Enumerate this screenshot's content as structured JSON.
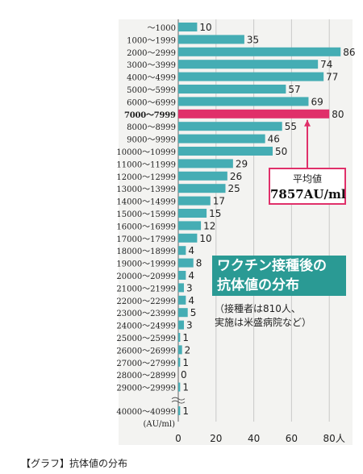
{
  "chart_data": {
    "type": "bar",
    "orientation": "horizontal",
    "title": "ワクチン接種後の抗体値の分布",
    "note": "（接種者は810人、実施は米盛病院など）",
    "categories": [
      "～1000",
      "1000～1999",
      "2000～2999",
      "3000～3999",
      "4000～4999",
      "5000～5999",
      "6000～6999",
      "7000～7999",
      "8000～8999",
      "9000～9999",
      "10000～10999",
      "11000～11999",
      "12000～12999",
      "13000～13999",
      "14000～14999",
      "15000～15999",
      "16000～16999",
      "17000～17999",
      "18000～18999",
      "19000～19999",
      "20000～20999",
      "21000～21999",
      "22000～22999",
      "23000～23999",
      "24000～24999",
      "25000～25999",
      "26000～26999",
      "27000～27999",
      "28000～28999",
      "29000～29999",
      "40000～40999"
    ],
    "values": [
      10,
      35,
      86,
      74,
      77,
      57,
      69,
      80,
      55,
      46,
      50,
      29,
      26,
      25,
      17,
      15,
      12,
      10,
      4,
      8,
      4,
      3,
      4,
      5,
      3,
      1,
      2,
      1,
      0,
      1,
      1
    ],
    "highlight_index": 7,
    "xticks": [
      "0",
      "20",
      "40",
      "60",
      "80人"
    ],
    "xlim": [
      0,
      90
    ],
    "ylabel": "(AU/ml)",
    "grid": true,
    "colors": {
      "bar": "#45adb4",
      "highlight": "#e0306a",
      "badge": "#2a9a94"
    }
  },
  "average": {
    "label": "平均値",
    "value": "7857AU/ml"
  },
  "badge": {
    "line1": "ワクチン接種後の",
    "line2": "抗体値の分布"
  },
  "note": {
    "line1": "（接種者は810人、",
    "line2": "実施は米盛病院など）"
  },
  "caption": "【グラフ】抗体値の分布"
}
